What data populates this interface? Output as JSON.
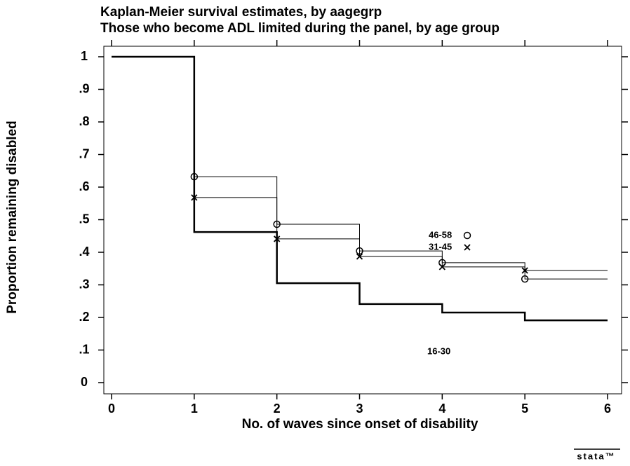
{
  "chart_data": {
    "type": "step",
    "title": "Kaplan-Meier survival estimates, by aagegrp",
    "subtitle": "Those who become ADL limited during the panel, by age group",
    "xlabel": "No. of waves since onset of disability",
    "ylabel": "Proportion remaining disabled",
    "x": [
      0,
      1,
      2,
      3,
      4,
      5
    ],
    "xlim": [
      0,
      6
    ],
    "xticks": [
      0,
      1,
      2,
      3,
      4,
      5,
      6
    ],
    "ylim": [
      0,
      1
    ],
    "yticks": [
      0,
      {
        "value": 0.1,
        "label": ".1"
      },
      {
        "value": 0.2,
        "label": ".2"
      },
      {
        "value": 0.3,
        "label": ".3"
      },
      {
        "value": 0.4,
        "label": ".4"
      },
      {
        "value": 0.5,
        "label": ".5"
      },
      {
        "value": 0.6,
        "label": ".6"
      },
      {
        "value": 0.7,
        "label": ".7"
      },
      {
        "value": 0.8,
        "label": ".8"
      },
      {
        "value": 0.9,
        "label": ".9"
      },
      1
    ],
    "series": [
      {
        "name": "46-58",
        "color": "#000000",
        "marker": "circle",
        "values": [
          1,
          0.632,
          0.486,
          0.404,
          0.368,
          0.318
        ]
      },
      {
        "name": "31-45",
        "color": "#000000",
        "marker": "x",
        "values": [
          1,
          0.568,
          0.441,
          0.387,
          0.355,
          0.344
        ]
      },
      {
        "name": "16-30",
        "color": "#000000",
        "marker": "none",
        "values": [
          1,
          0.462,
          0.305,
          0.241,
          0.215,
          0.191
        ]
      }
    ],
    "logo": "stata™"
  }
}
